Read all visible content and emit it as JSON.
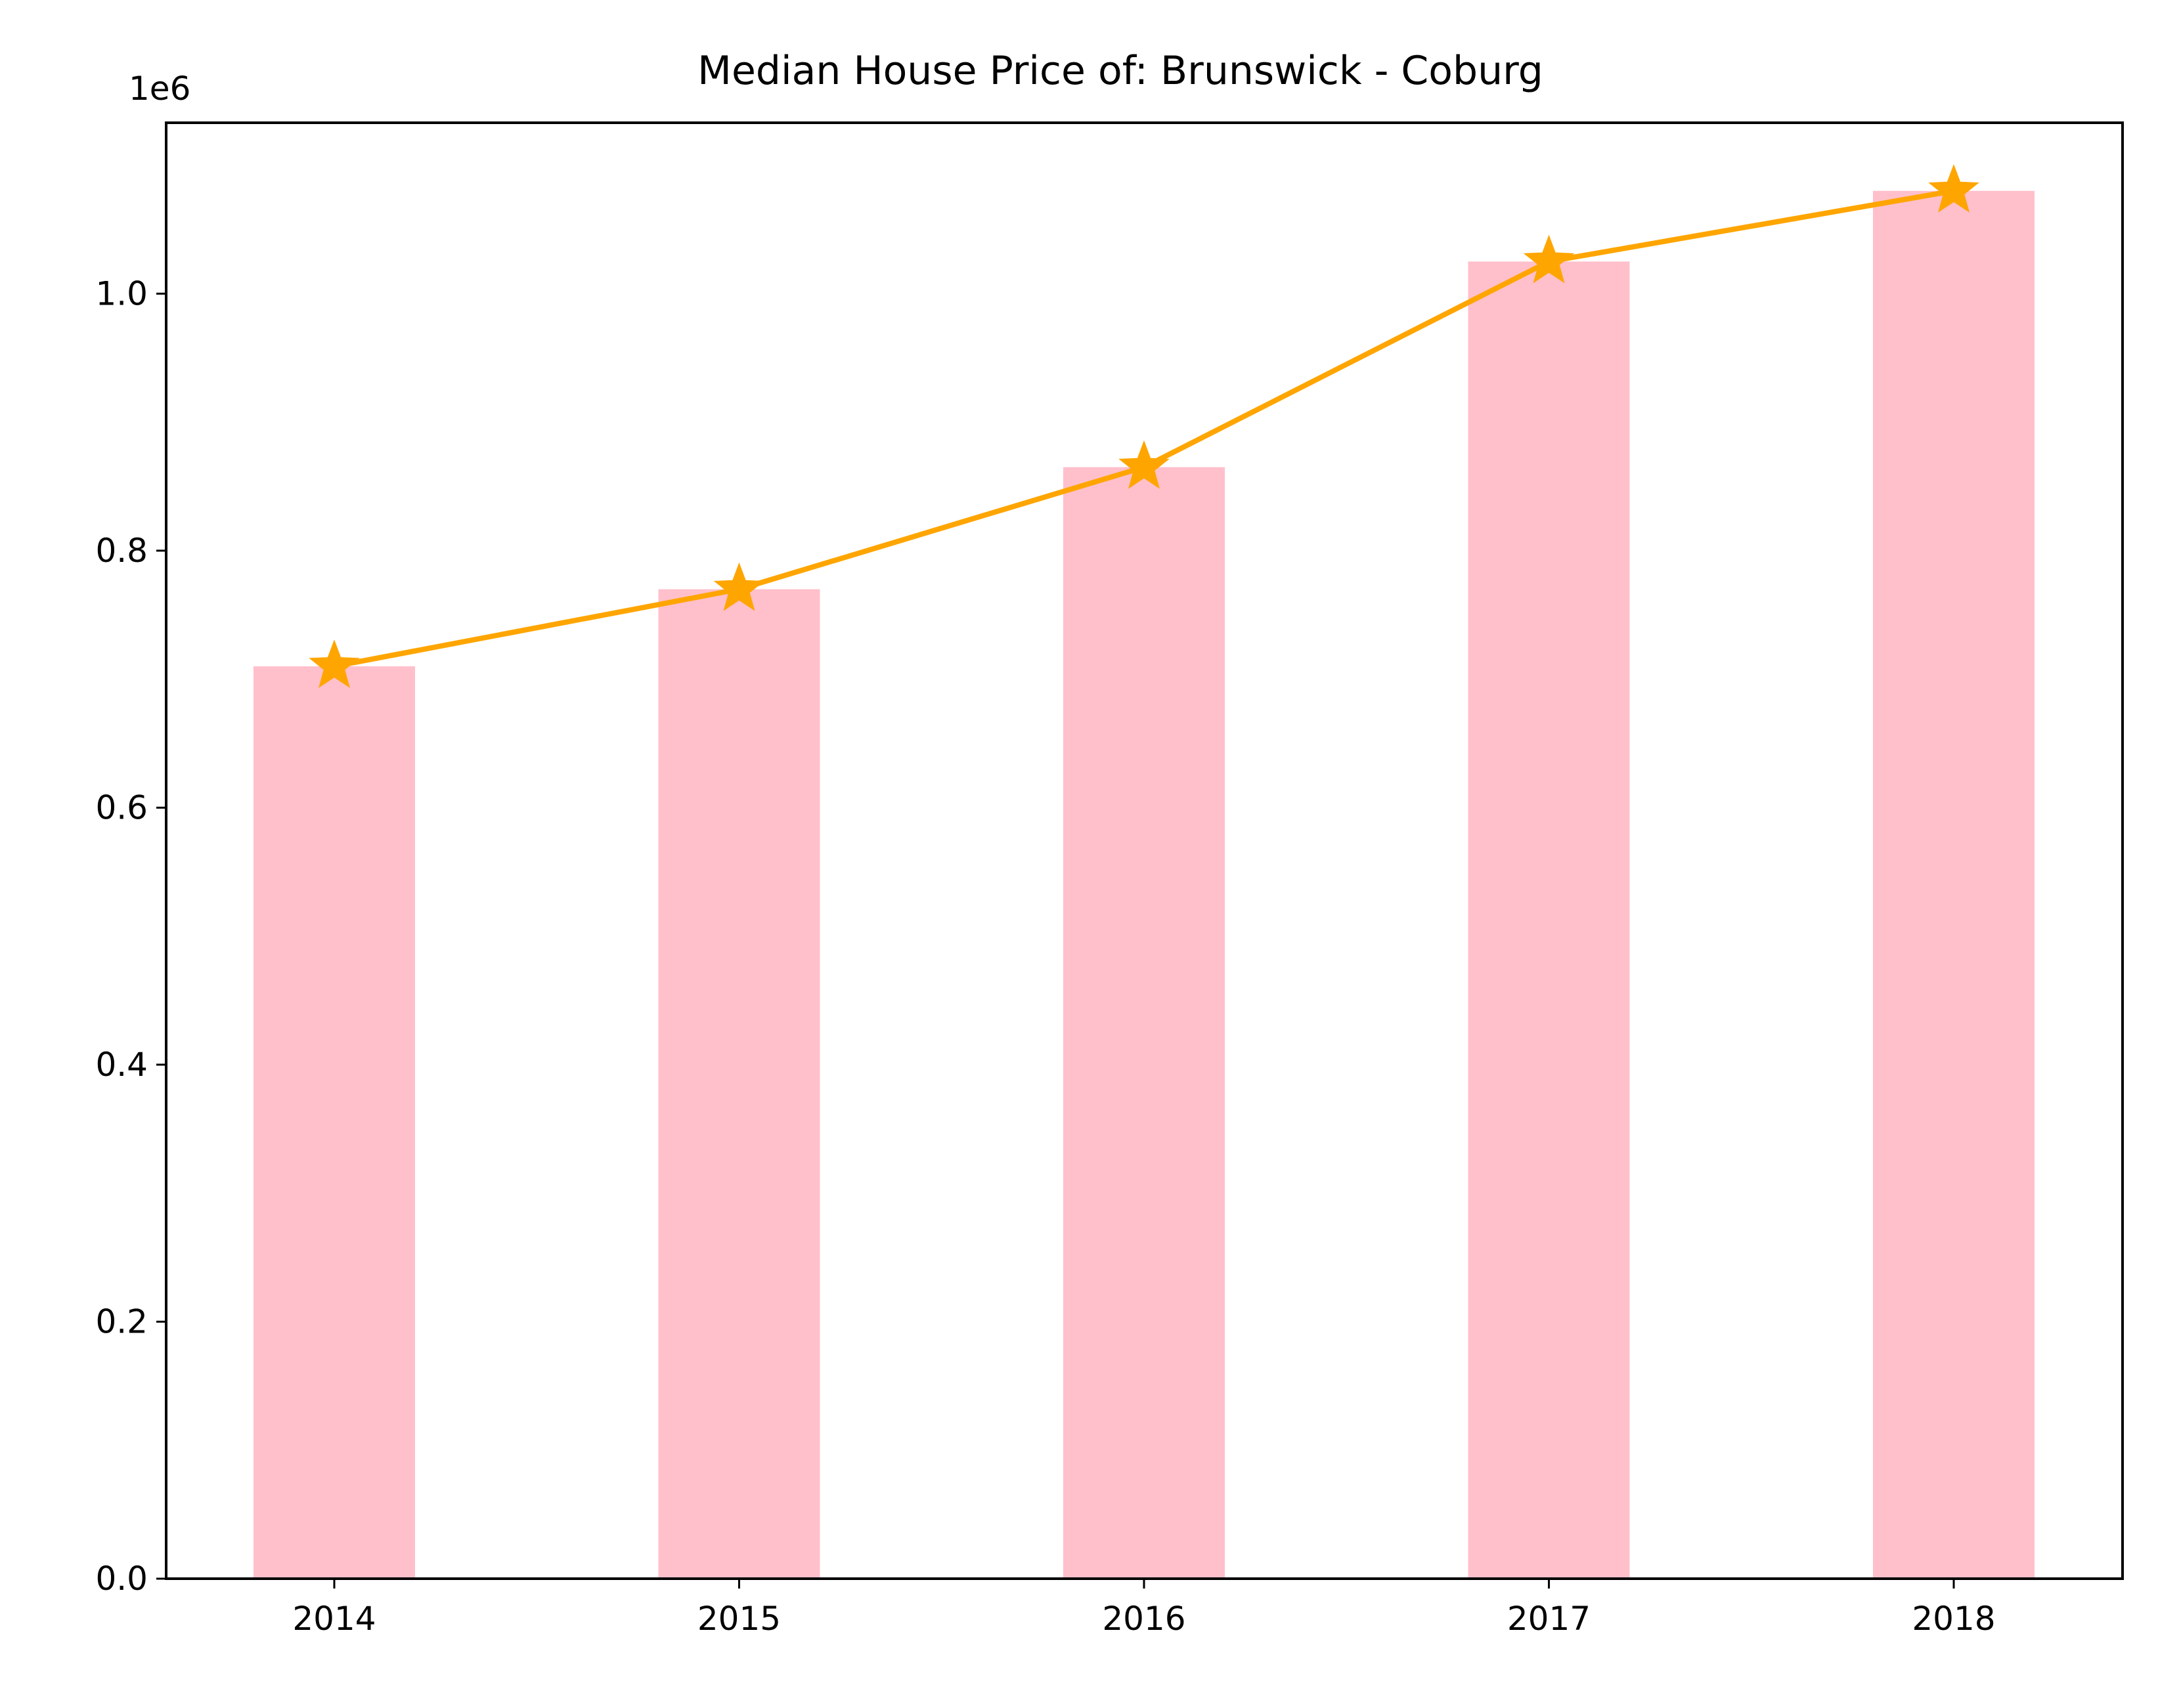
{
  "chart_data": {
    "type": "bar",
    "title": "Median House Price of: Brunswick - Coburg",
    "xlabel": "",
    "ylabel": "",
    "y_offset_label": "1e6",
    "categories": [
      "2014",
      "2015",
      "2016",
      "2017",
      "2018"
    ],
    "y_tick_labels": [
      "0.0",
      "0.2",
      "0.4",
      "0.6",
      "0.8",
      "1.0"
    ],
    "y_tick_values": [
      0,
      200000,
      400000,
      600000,
      800000,
      1000000
    ],
    "ylim": [
      0,
      1133000
    ],
    "grid": false,
    "legend": "none",
    "series": [
      {
        "kind": "bar",
        "color": "#ffc0cb",
        "values": [
          710000,
          770000,
          865000,
          1025000,
          1080000
        ]
      },
      {
        "kind": "line",
        "marker": "star",
        "color": "#ffa500",
        "values": [
          710000,
          770000,
          865000,
          1025000,
          1080000
        ]
      }
    ]
  }
}
